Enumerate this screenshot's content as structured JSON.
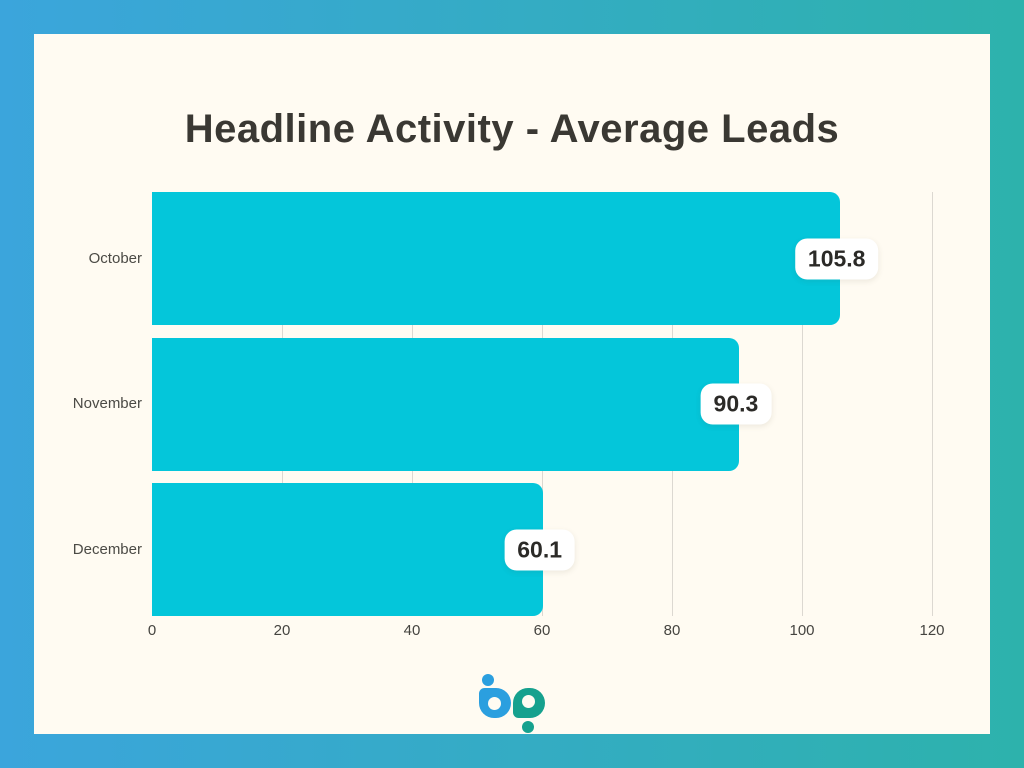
{
  "chart_data": {
    "type": "bar",
    "orientation": "horizontal",
    "title": "Headline Activity - Average Leads",
    "categories": [
      "October",
      "November",
      "December"
    ],
    "values": [
      105.8,
      90.3,
      60.1
    ],
    "value_labels": [
      "105.8",
      "90.3",
      "60.1"
    ],
    "xlabel": "",
    "ylabel": "",
    "xlim": [
      0,
      120
    ],
    "xticks": [
      0,
      20,
      40,
      60,
      80,
      100,
      120
    ],
    "grid": "vertical-only",
    "legend": "none",
    "bar_color": "#04c6da",
    "value_pill_bg": "#ffffff",
    "value_text_color": "#2b2a27",
    "gridline_color": "#dcd8d1"
  },
  "frame": {
    "gradient_left": "#3ba5dc",
    "gradient_right": "#2db2ac",
    "card_bg": "#fffbf2",
    "title_color": "#3a3833"
  },
  "branding": {
    "logo_name": "bp-logo",
    "logo_blue": "#2b9fdf",
    "logo_teal": "#16a18e"
  }
}
